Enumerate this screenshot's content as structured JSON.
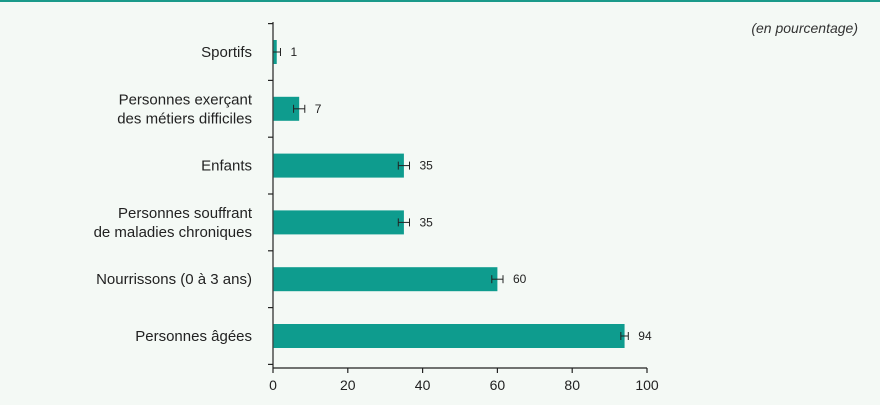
{
  "note": "(en pourcentage)",
  "colors": {
    "bar": "#0e9c8e",
    "axis": "#222222",
    "text": "#222222",
    "background": "#f4f9f5",
    "top_border": "#1a9a8a"
  },
  "chart_data": {
    "type": "bar",
    "orientation": "horizontal",
    "categories": [
      [
        "Sportifs"
      ],
      [
        "Personnes exerçant",
        "des métiers difficiles"
      ],
      [
        "Enfants"
      ],
      [
        "Personnes souffrant",
        "de maladies chroniques"
      ],
      [
        "Nourrissons (0 à 3 ans)"
      ],
      [
        "Personnes âgées"
      ]
    ],
    "values": [
      1,
      7,
      35,
      35,
      60,
      94
    ],
    "data_labels": [
      "1",
      "7",
      "35",
      "35",
      "60",
      "94"
    ],
    "error_bars": [
      1,
      1.5,
      1.5,
      1.5,
      1.5,
      1
    ],
    "xlim": [
      0,
      100
    ],
    "xticks": [
      0,
      20,
      40,
      60,
      80,
      100
    ],
    "grid": false,
    "legend": "none"
  }
}
